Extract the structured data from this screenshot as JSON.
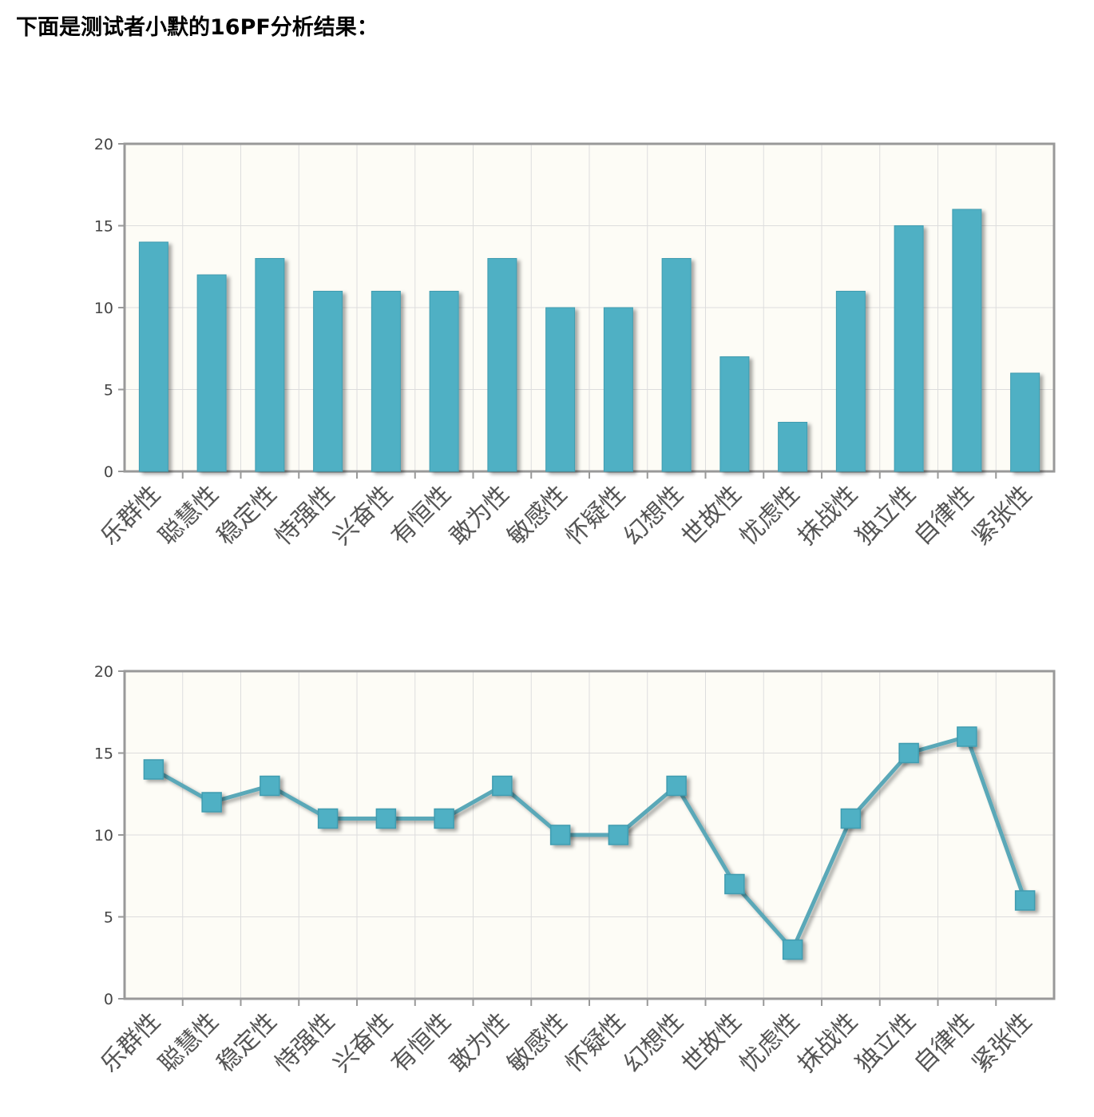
{
  "page": {
    "title": "下面是测试者小默的16PF分析结果："
  },
  "colors": {
    "series": "#4fb0c4",
    "line": "#5aa8b8",
    "plot_background": "#fdfcf6",
    "grid": "#dddddd",
    "axis": "#999999"
  },
  "chart_data": [
    {
      "type": "bar",
      "title": "",
      "xlabel": "",
      "ylabel": "",
      "ylim": [
        0,
        20
      ],
      "yticks": [
        "0",
        "5",
        "10",
        "15",
        "20"
      ],
      "grid": true,
      "legend": "none",
      "categories": [
        "乐群性",
        "聪慧性",
        "稳定性",
        "恃强性",
        "兴奋性",
        "有恒性",
        "敢为性",
        "敏感性",
        "怀疑性",
        "幻想性",
        "世故性",
        "忧虑性",
        "抹战性",
        "独立性",
        "自律性",
        "紧张性"
      ],
      "values": [
        14,
        12,
        13,
        11,
        11,
        11,
        13,
        10,
        10,
        13,
        7,
        3,
        11,
        15,
        16,
        6
      ]
    },
    {
      "type": "line",
      "title": "",
      "xlabel": "",
      "ylabel": "",
      "ylim": [
        0,
        20
      ],
      "yticks": [
        "0",
        "5",
        "10",
        "15",
        "20"
      ],
      "grid": true,
      "legend": "none",
      "marker": "square",
      "categories": [
        "乐群性",
        "聪慧性",
        "稳定性",
        "恃强性",
        "兴奋性",
        "有恒性",
        "敢为性",
        "敏感性",
        "怀疑性",
        "幻想性",
        "世故性",
        "忧虑性",
        "抹战性",
        "独立性",
        "自律性",
        "紧张性"
      ],
      "values": [
        14,
        12,
        13,
        11,
        11,
        11,
        13,
        10,
        10,
        13,
        7,
        3,
        11,
        15,
        16,
        6
      ]
    }
  ]
}
